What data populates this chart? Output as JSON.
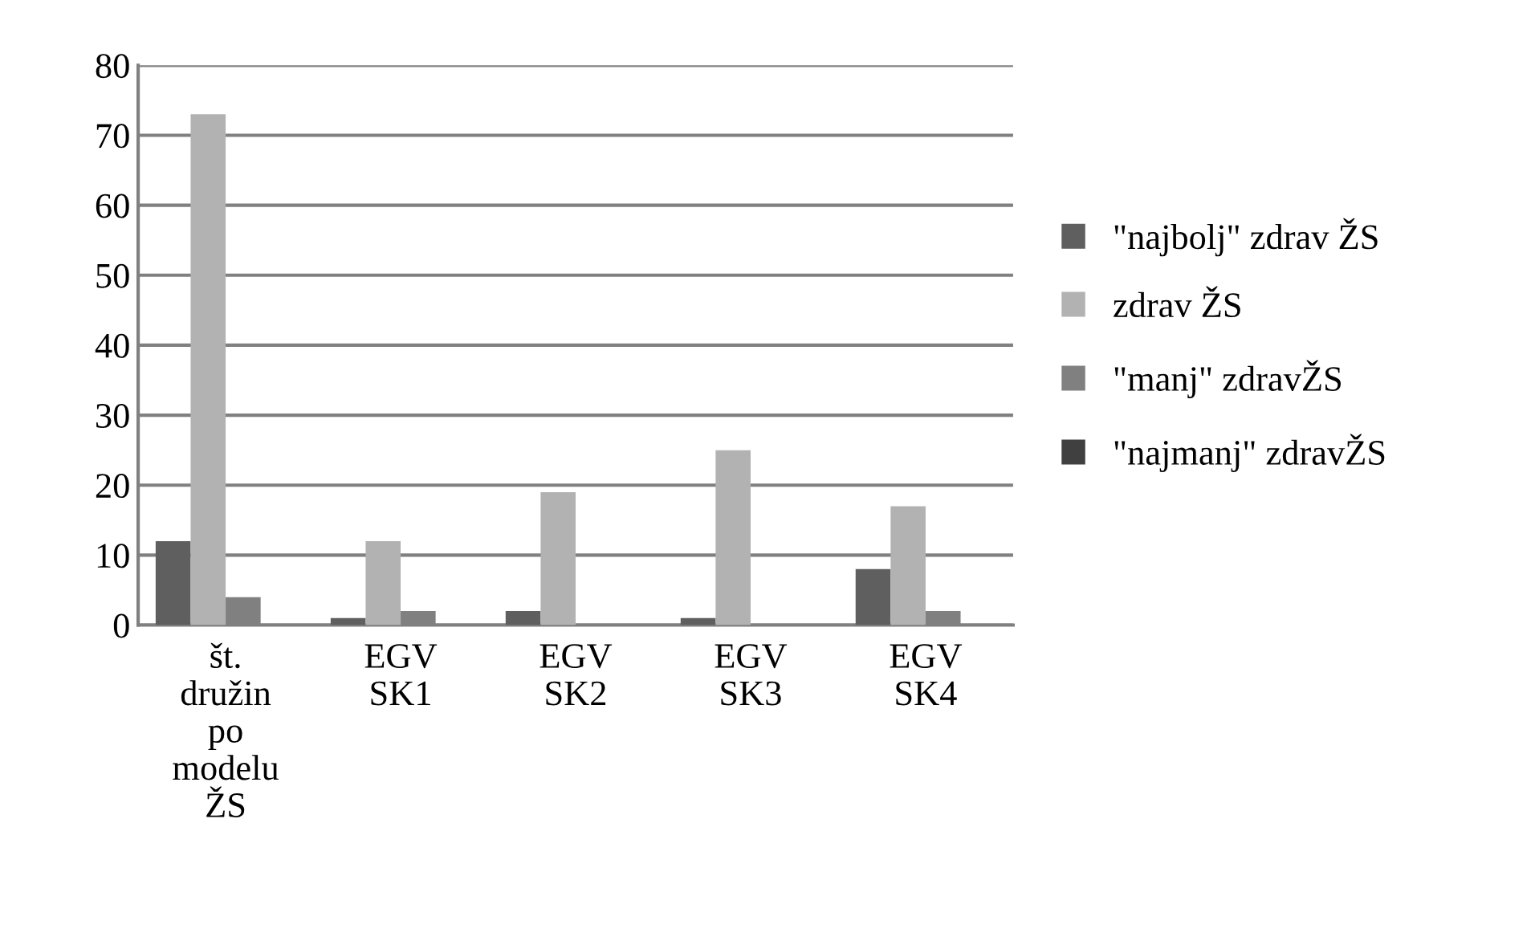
{
  "chart_data": {
    "type": "bar",
    "categories": [
      "št. družin po modelu ŽS",
      "EGV SK1",
      "EGV SK2",
      "EGV SK3",
      "EGV SK4"
    ],
    "series": [
      {
        "name": "\"najbolj\" zdrav ŽS",
        "color": "#5f5f5f",
        "values": [
          12,
          1,
          2,
          1,
          8
        ]
      },
      {
        "name": "zdrav ŽS",
        "color": "#b2b2b2",
        "values": [
          73,
          12,
          19,
          25,
          17
        ]
      },
      {
        "name": "\"manj\" zdravŽS",
        "color": "#808080",
        "values": [
          4,
          2,
          0,
          0,
          2
        ]
      },
      {
        "name": "\"najmanj\" zdravŽS",
        "color": "#404040",
        "values": [
          0,
          0,
          0,
          0,
          0
        ]
      }
    ],
    "ylim": [
      0,
      80
    ],
    "yticks": [
      0,
      10,
      20,
      30,
      40,
      50,
      60,
      70,
      80
    ],
    "grid": "y",
    "legend": "right"
  }
}
